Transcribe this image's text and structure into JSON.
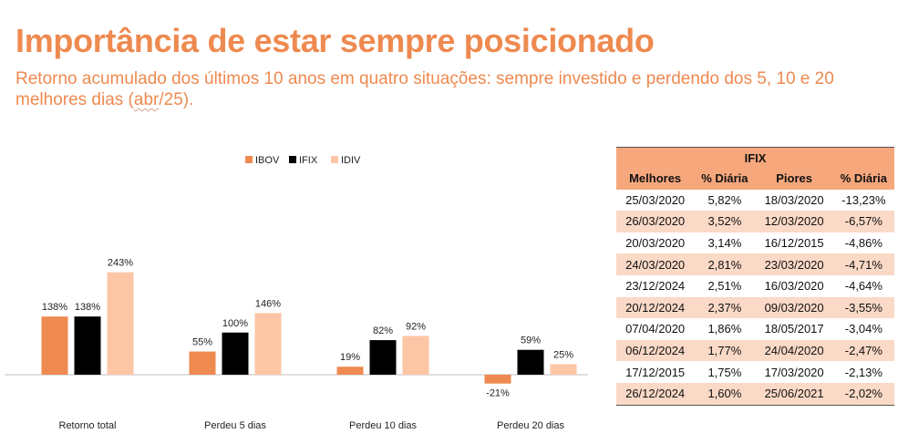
{
  "header": {
    "title": "Importância de estar sempre posicionado",
    "subtitle_part1": "Retorno acumulado dos últimos 10 anos em quatro situações: sempre investido e perdendo dos 5, 10 e 20 melhores dias (",
    "subtitle_abbr": "abr",
    "subtitle_part2": "/25)."
  },
  "chart_data": {
    "type": "bar",
    "categories": [
      "Retorno total",
      "Perdeu 5 dias",
      "Perdeu 10 dias",
      "Perdeu 20 dias"
    ],
    "series": [
      {
        "name": "IBOV",
        "values": [
          138,
          55,
          19,
          -21
        ],
        "labels": [
          "138%",
          "55%",
          "19%",
          "-21%"
        ],
        "color": "#EE8A50"
      },
      {
        "name": "IFIX",
        "values": [
          138,
          100,
          82,
          59
        ],
        "labels": [
          "138%",
          "100%",
          "82%",
          "59%"
        ],
        "color": "#000000"
      },
      {
        "name": "IDIV",
        "values": [
          243,
          146,
          92,
          25
        ],
        "labels": [
          "243%",
          "146%",
          "92%",
          "25%"
        ],
        "color": "#FCC6A6"
      }
    ],
    "legend_position": "top-center",
    "grid": false,
    "ylim": [
      -30,
      260
    ]
  },
  "table": {
    "title": "IFIX",
    "headers": [
      "Melhores",
      "% Diária",
      "Piores",
      "% Diária"
    ],
    "rows": [
      [
        "25/03/2020",
        "5,82%",
        "18/03/2020",
        "-13,23%"
      ],
      [
        "26/03/2020",
        "3,52%",
        "12/03/2020",
        "-6,57%"
      ],
      [
        "20/03/2020",
        "3,14%",
        "16/12/2015",
        "-4,86%"
      ],
      [
        "24/03/2020",
        "2,81%",
        "23/03/2020",
        "-4,71%"
      ],
      [
        "23/12/2024",
        "2,51%",
        "16/03/2020",
        "-4,64%"
      ],
      [
        "20/12/2024",
        "2,37%",
        "09/03/2020",
        "-3,55%"
      ],
      [
        "07/04/2020",
        "1,86%",
        "18/05/2017",
        "-3,04%"
      ],
      [
        "06/12/2024",
        "1,77%",
        "24/04/2020",
        "-2,47%"
      ],
      [
        "17/12/2015",
        "1,75%",
        "17/03/2020",
        "-2,13%"
      ],
      [
        "26/12/2024",
        "1,60%",
        "25/06/2021",
        "-2,02%"
      ]
    ]
  }
}
